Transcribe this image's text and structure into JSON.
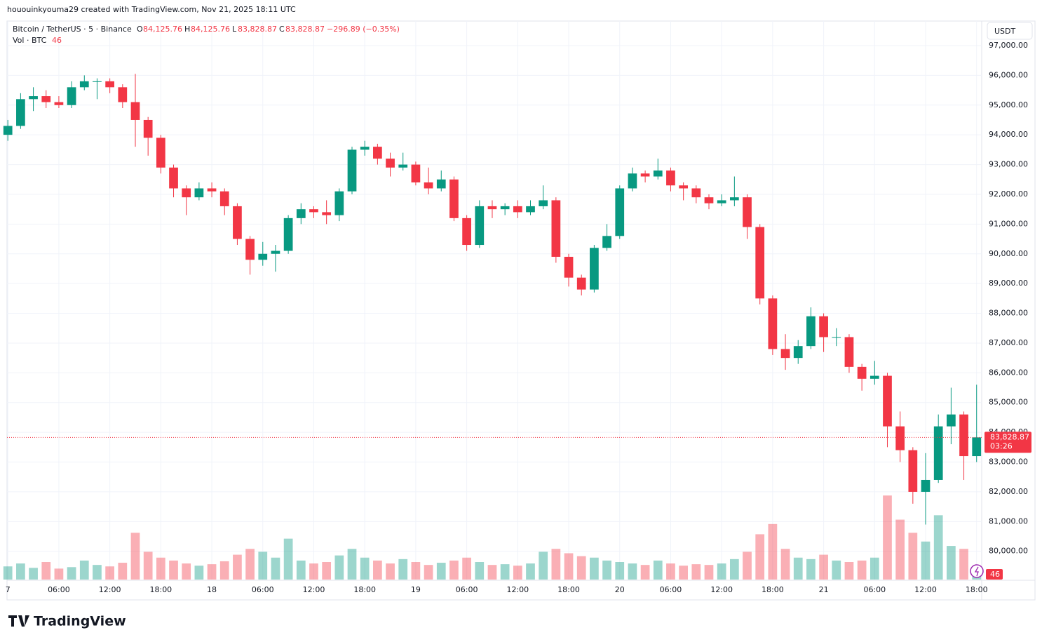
{
  "header": {
    "credit": "hououinkyouma29 created with TradingView.com, Nov 21, 2025 18:11 UTC"
  },
  "legend": {
    "symbol": "Bitcoin / TetherUS · 5 · Binance",
    "o_label": "O",
    "o": "84,125.76",
    "h_label": "H",
    "h": "84,125.76",
    "l_label": "L",
    "l": "83,828.87",
    "c_label": "C",
    "c": "83,828.87",
    "change": "−296.89 (−0.35%)",
    "vol_label": "Vol · BTC"
  },
  "footer": {
    "brand": "TradingView"
  },
  "chart_data": {
    "type": "candlestick",
    "currency": "USDT",
    "up_color": "#089981",
    "down_color": "#f23645",
    "grid": true,
    "xlim": [
      -0.1,
      114.6
    ],
    "ylim": [
      79050,
      97825
    ],
    "vol_lim": [
      0,
      1200
    ],
    "xticks": [
      {
        "value": 0,
        "label": "7"
      },
      {
        "value": 6,
        "label": "06:00"
      },
      {
        "value": 12,
        "label": "12:00"
      },
      {
        "value": 18,
        "label": "18:00"
      },
      {
        "value": 24,
        "label": "18"
      },
      {
        "value": 30,
        "label": "06:00"
      },
      {
        "value": 36,
        "label": "12:00"
      },
      {
        "value": 42,
        "label": "18:00"
      },
      {
        "value": 48,
        "label": "19"
      },
      {
        "value": 54,
        "label": "06:00"
      },
      {
        "value": 60,
        "label": "12:00"
      },
      {
        "value": 66,
        "label": "18:00"
      },
      {
        "value": 72,
        "label": "20"
      },
      {
        "value": 78,
        "label": "06:00"
      },
      {
        "value": 84,
        "label": "12:00"
      },
      {
        "value": 90,
        "label": "18:00"
      },
      {
        "value": 96,
        "label": "21"
      },
      {
        "value": 102,
        "label": "06:00"
      },
      {
        "value": 108,
        "label": "12:00"
      },
      {
        "value": 114,
        "label": "18:00"
      }
    ],
    "yticks": [
      {
        "value": 80000,
        "label": "80,000.00"
      },
      {
        "value": 81000,
        "label": "81,000.00"
      },
      {
        "value": 82000,
        "label": "82,000.00"
      },
      {
        "value": 83000,
        "label": "83,000.00"
      },
      {
        "value": 84000,
        "label": "84,000.00"
      },
      {
        "value": 85000,
        "label": "85,000.00"
      },
      {
        "value": 86000,
        "label": "86,000.00"
      },
      {
        "value": 87000,
        "label": "87,000.00"
      },
      {
        "value": 88000,
        "label": "88,000.00"
      },
      {
        "value": 89000,
        "label": "89,000.00"
      },
      {
        "value": 90000,
        "label": "90,000.00"
      },
      {
        "value": 91000,
        "label": "91,000.00"
      },
      {
        "value": 92000,
        "label": "92,000.00"
      },
      {
        "value": 93000,
        "label": "93,000.00"
      },
      {
        "value": 94000,
        "label": "94,000.00"
      },
      {
        "value": 95000,
        "label": "95,000.00"
      },
      {
        "value": 96000,
        "label": "96,000.00"
      },
      {
        "value": 97000,
        "label": "97,000.00"
      }
    ],
    "last_price": {
      "value": 83828.87,
      "label": "83,828.87"
    },
    "countdown": "03:26",
    "x": [
      0,
      1.5,
      3,
      4.5,
      6,
      7.5,
      9,
      10.5,
      12,
      13.5,
      15,
      16.5,
      18,
      19.5,
      21,
      22.5,
      24,
      25.5,
      27,
      28.5,
      30,
      31.5,
      33,
      34.5,
      36,
      37.5,
      39,
      40.5,
      42,
      43.5,
      45,
      46.5,
      48,
      49.5,
      51,
      52.5,
      54,
      55.5,
      57,
      58.5,
      60,
      61.5,
      63,
      64.5,
      66,
      67.5,
      69,
      70.5,
      72,
      73.5,
      75,
      76.5,
      78,
      79.5,
      81,
      82.5,
      84,
      85.5,
      87,
      88.5,
      90,
      91.5,
      93,
      94.5,
      96,
      97.5,
      99,
      100.5,
      102,
      103.5,
      105,
      106.5,
      108,
      109.5,
      111,
      112.5,
      114
    ],
    "open": [
      94000,
      94300,
      95200,
      95300,
      95100,
      95000,
      95600,
      95800,
      95800,
      95600,
      95100,
      94500,
      93900,
      92900,
      92200,
      91900,
      92200,
      92100,
      91600,
      90500,
      89800,
      90000,
      90100,
      91200,
      91500,
      91400,
      91300,
      92100,
      93500,
      93600,
      93200,
      92900,
      93000,
      92400,
      92200,
      92500,
      91200,
      90300,
      91600,
      91500,
      91600,
      91400,
      91600,
      91800,
      89900,
      89200,
      88800,
      90200,
      90600,
      92200,
      92700,
      92600,
      92800,
      92300,
      92200,
      91900,
      91700,
      91800,
      91900,
      90900,
      88500,
      86800,
      86500,
      86900,
      87900,
      87200,
      87200,
      86200,
      85800,
      85900,
      84200,
      83400,
      82000,
      82400,
      84200,
      84600,
      83200
    ],
    "high": [
      94500,
      95400,
      95600,
      95500,
      95300,
      95800,
      96000,
      95900,
      95900,
      95700,
      96050,
      94600,
      94000,
      93000,
      92300,
      92400,
      92400,
      92200,
      91700,
      90600,
      90400,
      90300,
      91300,
      91700,
      91600,
      91800,
      92200,
      93600,
      93800,
      93700,
      93400,
      93400,
      93100,
      92900,
      92800,
      92600,
      91300,
      91800,
      91800,
      91700,
      91800,
      91800,
      92300,
      91900,
      90000,
      89300,
      90300,
      91000,
      92300,
      92900,
      92800,
      93200,
      92900,
      92400,
      92300,
      92000,
      92000,
      92600,
      92000,
      91000,
      88600,
      87300,
      87100,
      88200,
      88000,
      87500,
      87300,
      86300,
      86400,
      86000,
      84700,
      83500,
      83300,
      84600,
      85500,
      84700,
      85600
    ],
    "low": [
      93800,
      94200,
      94800,
      94900,
      94900,
      94900,
      95500,
      95200,
      95400,
      94900,
      93600,
      93300,
      92700,
      91900,
      91300,
      91800,
      91900,
      91300,
      90300,
      89300,
      89600,
      89400,
      90000,
      91000,
      91200,
      91000,
      91100,
      92000,
      93300,
      93000,
      92600,
      92800,
      92300,
      92000,
      92100,
      91100,
      90100,
      90200,
      91200,
      91300,
      91200,
      91300,
      91500,
      89700,
      88900,
      88600,
      88700,
      90100,
      90500,
      92100,
      92400,
      92500,
      92100,
      91800,
      91700,
      91500,
      91600,
      91600,
      90500,
      88300,
      86600,
      86100,
      86300,
      86800,
      86700,
      86900,
      86000,
      85400,
      85600,
      83500,
      83000,
      81600,
      80900,
      82300,
      83600,
      82400,
      83000
    ],
    "close": [
      94300,
      95200,
      95300,
      95100,
      95000,
      95600,
      95800,
      95800,
      95600,
      95100,
      94500,
      93900,
      92900,
      92200,
      91900,
      92200,
      92100,
      91600,
      90500,
      89800,
      90000,
      90100,
      91200,
      91500,
      91400,
      91300,
      92100,
      93500,
      93600,
      93200,
      92900,
      93000,
      92400,
      92200,
      92500,
      91200,
      90300,
      91600,
      91500,
      91600,
      91400,
      91600,
      91800,
      89900,
      89200,
      88800,
      90200,
      90600,
      92200,
      92700,
      92600,
      92800,
      92300,
      92200,
      91900,
      91700,
      91800,
      91900,
      90900,
      88500,
      86800,
      86500,
      86900,
      87900,
      87200,
      87200,
      86200,
      85800,
      85900,
      84200,
      83400,
      82000,
      82400,
      84200,
      84600,
      83200,
      83828.87
    ],
    "volume": [
      180,
      220,
      160,
      240,
      150,
      170,
      260,
      200,
      180,
      230,
      640,
      380,
      300,
      260,
      220,
      190,
      210,
      250,
      340,
      420,
      380,
      300,
      560,
      260,
      220,
      240,
      330,
      420,
      300,
      260,
      220,
      280,
      240,
      200,
      230,
      260,
      300,
      240,
      200,
      210,
      190,
      220,
      380,
      420,
      360,
      320,
      300,
      260,
      240,
      220,
      200,
      260,
      220,
      190,
      210,
      200,
      220,
      280,
      380,
      620,
      760,
      420,
      300,
      280,
      340,
      260,
      240,
      260,
      300,
      1150,
      820,
      640,
      520,
      880,
      460,
      420,
      46
    ]
  }
}
